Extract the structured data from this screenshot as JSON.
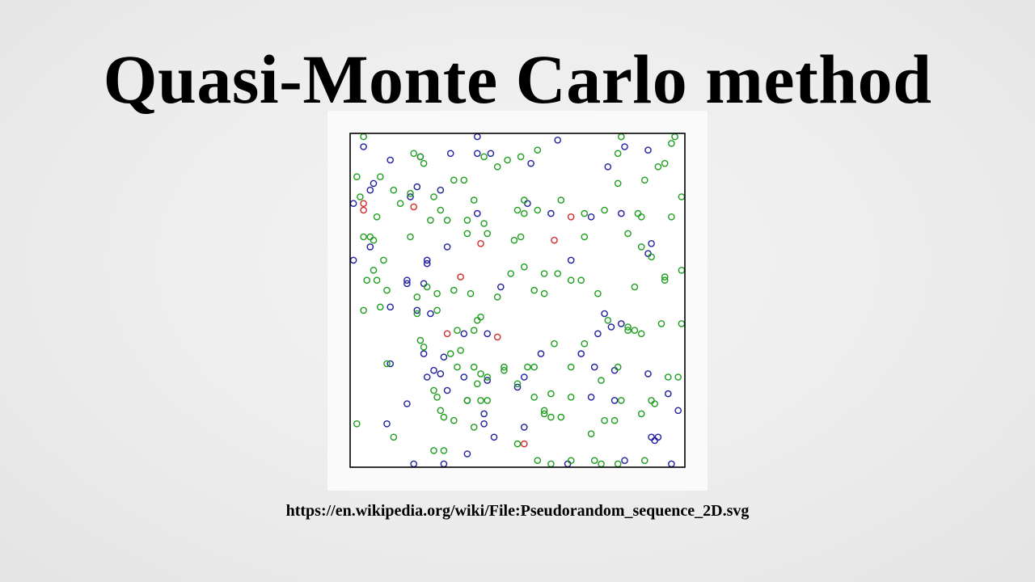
{
  "slide": {
    "title": "Quasi-Monte Carlo method",
    "source_url": "https://en.wikipedia.org/wiki/File:Pseudorandom_sequence_2D.svg"
  },
  "colors": {
    "first_points": "#d42a2a",
    "second_points": "#1f1f9e",
    "third_points": "#1e9e1e",
    "frame": "#000000",
    "plot_background": "#ffffff"
  },
  "chart_data": {
    "type": "scatter",
    "title": "",
    "xlabel": "",
    "ylabel": "",
    "xlim": [
      0,
      1
    ],
    "ylim": [
      0,
      1
    ],
    "grid": false,
    "marker": "open-circle",
    "series": [
      {
        "color": "#d42a2a",
        "points": [
          [
            0.04,
            0.79
          ],
          [
            0.04,
            0.77
          ],
          [
            0.19,
            0.78
          ],
          [
            0.66,
            0.75
          ],
          [
            0.39,
            0.67
          ],
          [
            0.61,
            0.68
          ],
          [
            0.33,
            0.57
          ],
          [
            0.29,
            0.4
          ],
          [
            0.44,
            0.39
          ],
          [
            0.52,
            0.07
          ]
        ]
      },
      {
        "color": "#1f1f9e",
        "points": [
          [
            0.04,
            0.96
          ],
          [
            0.38,
            0.99
          ],
          [
            0.62,
            0.98
          ],
          [
            0.82,
            0.96
          ],
          [
            0.89,
            0.95
          ],
          [
            0.21,
            0.93
          ],
          [
            0.3,
            0.94
          ],
          [
            0.38,
            0.94
          ],
          [
            0.42,
            0.94
          ],
          [
            0.54,
            0.91
          ],
          [
            0.77,
            0.9
          ],
          [
            0.12,
            0.92
          ],
          [
            0.07,
            0.85
          ],
          [
            0.2,
            0.84
          ],
          [
            0.27,
            0.83
          ],
          [
            0.18,
            0.81
          ],
          [
            0.06,
            0.83
          ],
          [
            0.01,
            0.79
          ],
          [
            0.53,
            0.79
          ],
          [
            0.6,
            0.76
          ],
          [
            0.72,
            0.75
          ],
          [
            0.81,
            0.76
          ],
          [
            0.38,
            0.76
          ],
          [
            0.29,
            0.66
          ],
          [
            0.06,
            0.66
          ],
          [
            0.23,
            0.62
          ],
          [
            0.23,
            0.61
          ],
          [
            0.01,
            0.62
          ],
          [
            0.17,
            0.56
          ],
          [
            0.17,
            0.55
          ],
          [
            0.22,
            0.55
          ],
          [
            0.45,
            0.54
          ],
          [
            0.66,
            0.62
          ],
          [
            0.9,
            0.67
          ],
          [
            0.89,
            0.64
          ],
          [
            0.12,
            0.48
          ],
          [
            0.2,
            0.47
          ],
          [
            0.24,
            0.46
          ],
          [
            0.76,
            0.46
          ],
          [
            0.81,
            0.43
          ],
          [
            0.78,
            0.42
          ],
          [
            0.74,
            0.4
          ],
          [
            0.34,
            0.4
          ],
          [
            0.41,
            0.4
          ],
          [
            0.22,
            0.34
          ],
          [
            0.28,
            0.33
          ],
          [
            0.57,
            0.34
          ],
          [
            0.69,
            0.34
          ],
          [
            0.73,
            0.3
          ],
          [
            0.79,
            0.29
          ],
          [
            0.12,
            0.31
          ],
          [
            0.25,
            0.29
          ],
          [
            0.27,
            0.28
          ],
          [
            0.41,
            0.26
          ],
          [
            0.34,
            0.27
          ],
          [
            0.52,
            0.27
          ],
          [
            0.23,
            0.27
          ],
          [
            0.89,
            0.28
          ],
          [
            0.5,
            0.24
          ],
          [
            0.29,
            0.23
          ],
          [
            0.17,
            0.19
          ],
          [
            0.35,
            0.2
          ],
          [
            0.72,
            0.21
          ],
          [
            0.79,
            0.2
          ],
          [
            0.95,
            0.22
          ],
          [
            0.4,
            0.13
          ],
          [
            0.4,
            0.16
          ],
          [
            0.11,
            0.13
          ],
          [
            0.43,
            0.09
          ],
          [
            0.52,
            0.12
          ],
          [
            0.98,
            0.17
          ],
          [
            0.91,
            0.08
          ],
          [
            0.92,
            0.09
          ],
          [
            0.9,
            0.09
          ],
          [
            0.19,
            0.01
          ],
          [
            0.28,
            0.01
          ],
          [
            0.35,
            0.04
          ],
          [
            0.65,
            0.01
          ],
          [
            0.82,
            0.02
          ],
          [
            0.96,
            0.01
          ]
        ]
      },
      {
        "color": "#1e9e1e",
        "points": [
          [
            0.04,
            0.99
          ],
          [
            0.19,
            0.94
          ],
          [
            0.21,
            0.93
          ],
          [
            0.4,
            0.93
          ],
          [
            0.47,
            0.92
          ],
          [
            0.44,
            0.9
          ],
          [
            0.22,
            0.91
          ],
          [
            0.56,
            0.95
          ],
          [
            0.51,
            0.93
          ],
          [
            0.8,
            0.94
          ],
          [
            0.81,
            0.99
          ],
          [
            0.97,
            0.99
          ],
          [
            0.96,
            0.97
          ],
          [
            0.94,
            0.91
          ],
          [
            0.92,
            0.9
          ],
          [
            0.88,
            0.86
          ],
          [
            0.8,
            0.85
          ],
          [
            0.02,
            0.87
          ],
          [
            0.09,
            0.87
          ],
          [
            0.13,
            0.83
          ],
          [
            0.03,
            0.81
          ],
          [
            0.18,
            0.82
          ],
          [
            0.25,
            0.81
          ],
          [
            0.31,
            0.86
          ],
          [
            0.34,
            0.86
          ],
          [
            0.37,
            0.8
          ],
          [
            0.27,
            0.77
          ],
          [
            0.15,
            0.79
          ],
          [
            0.08,
            0.75
          ],
          [
            0.24,
            0.74
          ],
          [
            0.29,
            0.74
          ],
          [
            0.35,
            0.74
          ],
          [
            0.4,
            0.73
          ],
          [
            0.52,
            0.8
          ],
          [
            0.56,
            0.77
          ],
          [
            0.5,
            0.77
          ],
          [
            0.52,
            0.76
          ],
          [
            0.63,
            0.8
          ],
          [
            0.7,
            0.76
          ],
          [
            0.76,
            0.77
          ],
          [
            0.86,
            0.76
          ],
          [
            0.87,
            0.75
          ],
          [
            0.96,
            0.75
          ],
          [
            0.99,
            0.81
          ],
          [
            0.83,
            0.7
          ],
          [
            0.06,
            0.69
          ],
          [
            0.07,
            0.68
          ],
          [
            0.18,
            0.69
          ],
          [
            0.35,
            0.7
          ],
          [
            0.41,
            0.7
          ],
          [
            0.49,
            0.68
          ],
          [
            0.51,
            0.69
          ],
          [
            0.7,
            0.69
          ],
          [
            0.87,
            0.66
          ],
          [
            0.9,
            0.63
          ],
          [
            0.04,
            0.69
          ],
          [
            0.1,
            0.62
          ],
          [
            0.07,
            0.59
          ],
          [
            0.05,
            0.56
          ],
          [
            0.08,
            0.56
          ],
          [
            0.11,
            0.53
          ],
          [
            0.23,
            0.54
          ],
          [
            0.31,
            0.53
          ],
          [
            0.48,
            0.58
          ],
          [
            0.52,
            0.6
          ],
          [
            0.58,
            0.58
          ],
          [
            0.62,
            0.58
          ],
          [
            0.69,
            0.56
          ],
          [
            0.94,
            0.56
          ],
          [
            0.94,
            0.57
          ],
          [
            0.99,
            0.59
          ],
          [
            0.66,
            0.56
          ],
          [
            0.2,
            0.51
          ],
          [
            0.26,
            0.52
          ],
          [
            0.36,
            0.52
          ],
          [
            0.44,
            0.51
          ],
          [
            0.55,
            0.53
          ],
          [
            0.58,
            0.52
          ],
          [
            0.74,
            0.52
          ],
          [
            0.85,
            0.54
          ],
          [
            0.04,
            0.47
          ],
          [
            0.09,
            0.48
          ],
          [
            0.26,
            0.47
          ],
          [
            0.2,
            0.46
          ],
          [
            0.39,
            0.45
          ],
          [
            0.38,
            0.44
          ],
          [
            0.32,
            0.41
          ],
          [
            0.37,
            0.41
          ],
          [
            0.21,
            0.38
          ],
          [
            0.22,
            0.36
          ],
          [
            0.33,
            0.35
          ],
          [
            0.3,
            0.34
          ],
          [
            0.61,
            0.37
          ],
          [
            0.7,
            0.37
          ],
          [
            0.77,
            0.44
          ],
          [
            0.83,
            0.42
          ],
          [
            0.83,
            0.41
          ],
          [
            0.85,
            0.41
          ],
          [
            0.87,
            0.4
          ],
          [
            0.93,
            0.43
          ],
          [
            0.99,
            0.43
          ],
          [
            0.11,
            0.31
          ],
          [
            0.32,
            0.3
          ],
          [
            0.37,
            0.3
          ],
          [
            0.39,
            0.28
          ],
          [
            0.41,
            0.27
          ],
          [
            0.46,
            0.29
          ],
          [
            0.46,
            0.3
          ],
          [
            0.53,
            0.3
          ],
          [
            0.55,
            0.3
          ],
          [
            0.66,
            0.3
          ],
          [
            0.75,
            0.26
          ],
          [
            0.8,
            0.3
          ],
          [
            0.95,
            0.27
          ],
          [
            0.98,
            0.27
          ],
          [
            0.5,
            0.25
          ],
          [
            0.25,
            0.23
          ],
          [
            0.26,
            0.21
          ],
          [
            0.38,
            0.25
          ],
          [
            0.35,
            0.2
          ],
          [
            0.39,
            0.2
          ],
          [
            0.41,
            0.2
          ],
          [
            0.55,
            0.21
          ],
          [
            0.6,
            0.22
          ],
          [
            0.66,
            0.21
          ],
          [
            0.81,
            0.2
          ],
          [
            0.9,
            0.2
          ],
          [
            0.91,
            0.19
          ],
          [
            0.27,
            0.17
          ],
          [
            0.28,
            0.15
          ],
          [
            0.31,
            0.14
          ],
          [
            0.37,
            0.12
          ],
          [
            0.58,
            0.17
          ],
          [
            0.58,
            0.16
          ],
          [
            0.6,
            0.15
          ],
          [
            0.63,
            0.15
          ],
          [
            0.76,
            0.14
          ],
          [
            0.79,
            0.14
          ],
          [
            0.87,
            0.16
          ],
          [
            0.02,
            0.13
          ],
          [
            0.13,
            0.09
          ],
          [
            0.25,
            0.05
          ],
          [
            0.28,
            0.05
          ],
          [
            0.5,
            0.07
          ],
          [
            0.56,
            0.02
          ],
          [
            0.6,
            0.01
          ],
          [
            0.66,
            0.02
          ],
          [
            0.72,
            0.1
          ],
          [
            0.73,
            0.02
          ],
          [
            0.75,
            0.01
          ],
          [
            0.8,
            0.01
          ],
          [
            0.88,
            0.02
          ]
        ]
      }
    ]
  }
}
